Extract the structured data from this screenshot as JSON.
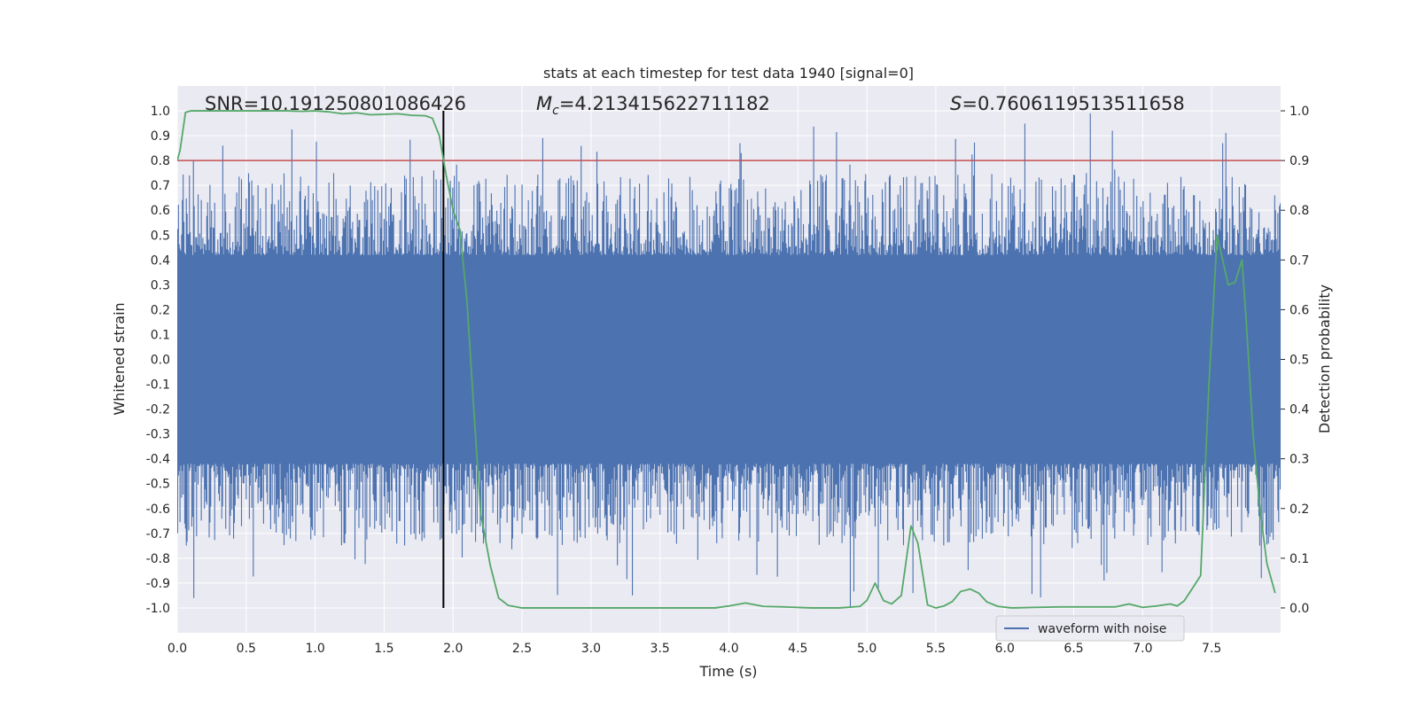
{
  "chart_data": {
    "type": "line",
    "title": "stats at each timestep for test data 1940 [signal=0]",
    "xlabel": "Time (s)",
    "ylabel_left": "Whitened strain",
    "ylabel_right": "Detection probability",
    "xlim": [
      0.0,
      8.0
    ],
    "ylim_left": [
      -1.1,
      1.1
    ],
    "ylim_right": [
      -0.05,
      1.05
    ],
    "x_ticks": [
      "0.0",
      "0.5",
      "1.0",
      "1.5",
      "2.0",
      "2.5",
      "3.0",
      "3.5",
      "4.0",
      "4.5",
      "5.0",
      "5.5",
      "6.0",
      "6.5",
      "7.0",
      "7.5"
    ],
    "y_left_ticks": [
      "1.0",
      "0.9",
      "0.8",
      "0.7",
      "0.6",
      "0.5",
      "0.4",
      "0.3",
      "0.2",
      "0.1",
      "0.0",
      "-0.1",
      "-0.2",
      "-0.3",
      "-0.4",
      "-0.5",
      "-0.6",
      "-0.7",
      "-0.8",
      "-0.9",
      "-1.0"
    ],
    "y_right_ticks": [
      "1.0",
      "0.9",
      "0.8",
      "0.7",
      "0.6",
      "0.5",
      "0.4",
      "0.3",
      "0.2",
      "0.1",
      "0.0"
    ],
    "grid": true,
    "legend": {
      "position": "lower-right",
      "entries": [
        "waveform with noise"
      ]
    },
    "annotations": {
      "snr": "SNR=10.191250801086426",
      "mc_symbol": "M",
      "mc_sub": "c",
      "mc_value": "=4.213415622711182",
      "s_symbol": "S",
      "s_value": "=0.7606119513511658"
    },
    "threshold": {
      "axis": "right",
      "value": 0.9,
      "color": "#c44e52"
    },
    "vline": {
      "x": 1.93,
      "y_range": [
        -1.0,
        1.0
      ],
      "color": "#000000"
    },
    "colors": {
      "waveform": "#4c72b0",
      "probability": "#55a868",
      "background": "#eaeaf2",
      "grid": "#ffffff"
    },
    "series": [
      {
        "name": "waveform with noise",
        "axis": "left",
        "kind": "noise-envelope",
        "core_amplitude": 0.4,
        "typical_peak": 0.75,
        "max_peak": 1.0,
        "min_trough": -1.0,
        "color": "#4c72b0"
      },
      {
        "axis": "right",
        "color": "#55a868",
        "x": [
          0.0,
          0.02,
          0.06,
          0.1,
          0.2,
          0.3,
          0.4,
          0.5,
          0.6,
          0.7,
          0.8,
          0.9,
          1.0,
          1.1,
          1.2,
          1.3,
          1.4,
          1.5,
          1.6,
          1.7,
          1.8,
          1.85,
          1.9,
          1.95,
          2.0,
          2.05,
          2.1,
          2.15,
          2.2,
          2.27,
          2.33,
          2.4,
          2.5,
          2.7,
          3.0,
          3.2,
          3.35,
          3.45,
          3.6,
          3.75,
          3.9,
          4.0,
          4.12,
          4.25,
          4.4,
          4.6,
          4.8,
          4.95,
          5.0,
          5.06,
          5.12,
          5.18,
          5.25,
          5.32,
          5.37,
          5.44,
          5.5,
          5.56,
          5.62,
          5.68,
          5.75,
          5.81,
          5.87,
          5.95,
          6.05,
          6.2,
          6.4,
          6.6,
          6.8,
          6.9,
          7.0,
          7.1,
          7.2,
          7.25,
          7.3,
          7.35,
          7.42,
          7.48,
          7.54,
          7.58,
          7.62,
          7.67,
          7.72,
          7.75,
          7.8,
          7.85,
          7.9,
          7.96
        ],
        "values": [
          0.9,
          0.92,
          0.997,
          1.0,
          1.0,
          1.0,
          1.0,
          1.0,
          1.0,
          1.0,
          1.0,
          0.999,
          1.0,
          0.998,
          0.994,
          0.996,
          0.992,
          0.993,
          0.994,
          0.991,
          0.99,
          0.985,
          0.95,
          0.87,
          0.8,
          0.76,
          0.62,
          0.4,
          0.19,
          0.085,
          0.02,
          0.005,
          0.0,
          0.0,
          0.0,
          0.0,
          0.0,
          0.0,
          0.0,
          0.0,
          0.0,
          0.004,
          0.01,
          0.003,
          0.002,
          0.0,
          0.0,
          0.003,
          0.015,
          0.05,
          0.015,
          0.008,
          0.025,
          0.165,
          0.13,
          0.006,
          0.0,
          0.004,
          0.013,
          0.033,
          0.038,
          0.03,
          0.012,
          0.003,
          0.0,
          0.001,
          0.002,
          0.002,
          0.002,
          0.008,
          0.001,
          0.004,
          0.008,
          0.004,
          0.014,
          0.035,
          0.065,
          0.45,
          0.75,
          0.7,
          0.65,
          0.655,
          0.7,
          0.58,
          0.35,
          0.2,
          0.09,
          0.03
        ]
      }
    ]
  }
}
